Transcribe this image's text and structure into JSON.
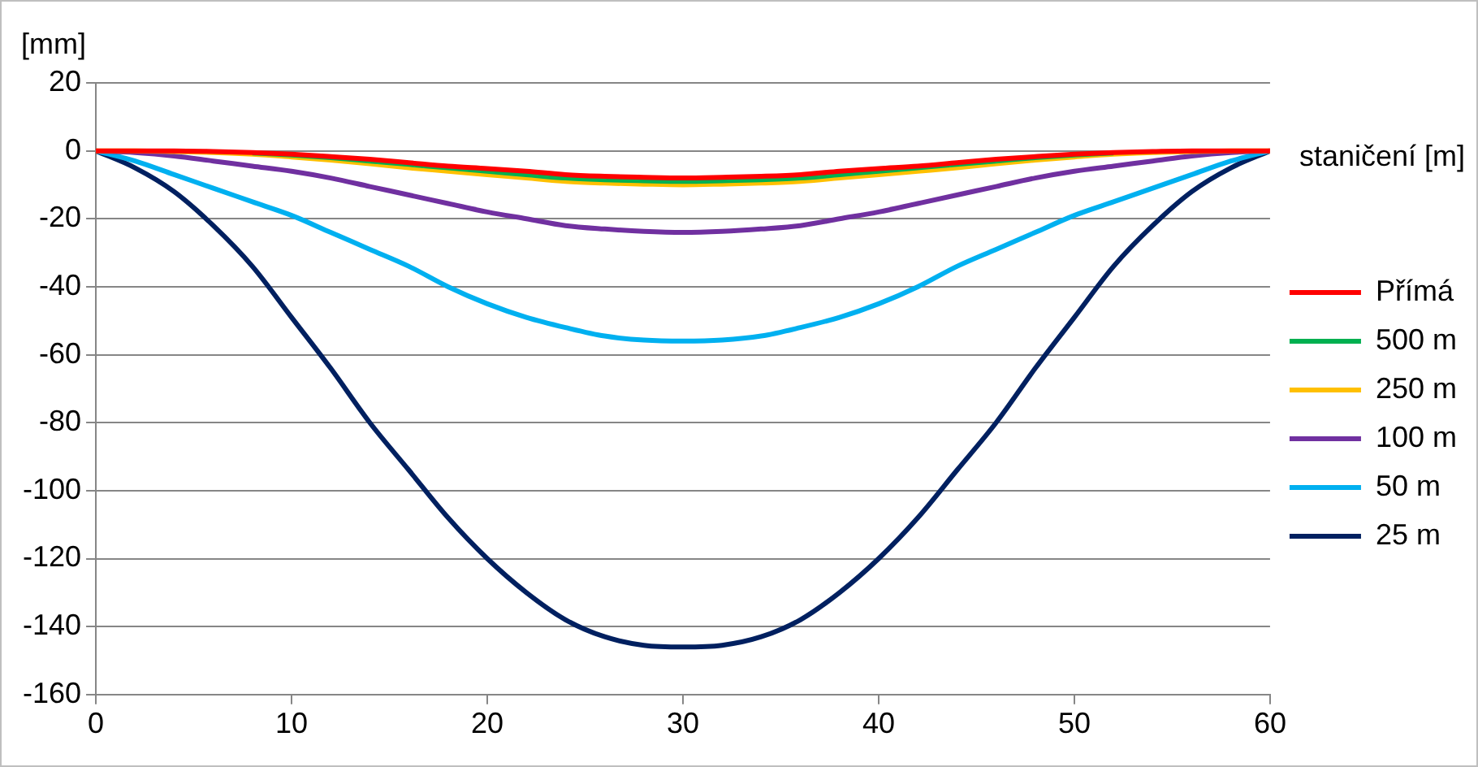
{
  "chart_data": {
    "type": "line",
    "xlabel": "staničení [m]",
    "ylabel": "[mm]",
    "x": [
      0,
      2,
      4,
      6,
      8,
      10,
      12,
      14,
      16,
      18,
      20,
      22,
      24,
      26,
      28,
      30,
      32,
      34,
      36,
      38,
      40,
      42,
      44,
      46,
      48,
      50,
      52,
      54,
      56,
      58,
      60
    ],
    "xlim": [
      0,
      60
    ],
    "xticks": [
      0,
      10,
      20,
      30,
      40,
      50,
      60
    ],
    "ylim": [
      -160,
      20
    ],
    "yticks": [
      20,
      0,
      -20,
      -40,
      -60,
      -80,
      -100,
      -120,
      -140,
      -160
    ],
    "grid": "y",
    "legend": "right",
    "marker": "none",
    "line_style": "solid",
    "series": [
      {
        "name": "Přímá",
        "color": "#ff0000",
        "values": [
          0,
          0,
          0,
          -0.2,
          -0.5,
          -1,
          -1.7,
          -2.5,
          -3.5,
          -4.5,
          -5.2,
          -6,
          -7,
          -7.5,
          -7.8,
          -8,
          -7.8,
          -7.5,
          -7,
          -6,
          -5.2,
          -4.5,
          -3.5,
          -2.5,
          -1.7,
          -1,
          -0.5,
          -0.2,
          0,
          0,
          0
        ]
      },
      {
        "name": "500 m",
        "color": "#00b050",
        "values": [
          null,
          null,
          null,
          null,
          -0.6,
          -1.2,
          -2,
          -3,
          -4,
          -5,
          -6,
          -7,
          -8,
          -8.5,
          -8.8,
          -9,
          -8.8,
          -8.5,
          -8,
          -7,
          -6,
          -5,
          -4,
          -3,
          -2,
          -1.2,
          -0.6,
          null,
          null,
          null,
          null
        ]
      },
      {
        "name": "250 m",
        "color": "#ffc000",
        "values": [
          0,
          0,
          -0.2,
          -0.5,
          -1,
          -1.8,
          -2.7,
          -3.8,
          -5,
          -6,
          -7,
          -8,
          -9,
          -9.5,
          -9.8,
          -10,
          -9.8,
          -9.5,
          -9,
          -8,
          -7,
          -6,
          -5,
          -3.8,
          -2.7,
          -1.8,
          -1,
          -0.5,
          -0.2,
          0,
          0
        ]
      },
      {
        "name": "100 m",
        "color": "#7030a0",
        "values": [
          0,
          -0.5,
          -1.5,
          -3,
          -4.5,
          -6,
          -8,
          -10.5,
          -13,
          -15.5,
          -18,
          -20,
          -22,
          -23,
          -23.7,
          -24,
          -23.7,
          -23,
          -22,
          -20,
          -18,
          -15.5,
          -13,
          -10.5,
          -8,
          -6,
          -4.5,
          -3,
          -1.5,
          -0.5,
          0
        ]
      },
      {
        "name": "50 m",
        "color": "#00b0f0",
        "values": [
          0,
          -3,
          -7,
          -11,
          -15,
          -19,
          -24,
          -29,
          -34,
          -40,
          -45,
          -49,
          -52,
          -54.5,
          -55.7,
          -56,
          -55.7,
          -54.5,
          -52,
          -49,
          -45,
          -40,
          -34,
          -29,
          -24,
          -19,
          -15,
          -11,
          -7,
          -3,
          0
        ]
      },
      {
        "name": "25 m",
        "color": "#002060",
        "values": [
          0,
          -5,
          -12,
          -22,
          -34,
          -49,
          -64,
          -80,
          -94,
          -108,
          -120,
          -130,
          -138,
          -143,
          -145.5,
          -146,
          -145.5,
          -143,
          -138,
          -130,
          -120,
          -108,
          -94,
          -80,
          -64,
          -49,
          -34,
          -22,
          -12,
          -5,
          0
        ]
      }
    ]
  }
}
